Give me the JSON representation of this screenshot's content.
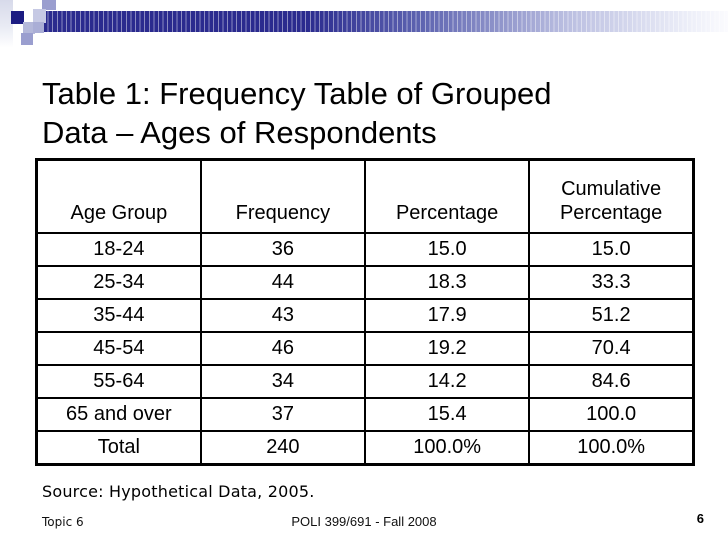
{
  "title": {
    "line1": "Table 1: Frequency Table of Grouped",
    "line2": "Data – Ages of Respondents"
  },
  "table": {
    "columns": [
      "Age Group",
      "Frequency",
      "Percentage",
      "Cumulative Percentage"
    ],
    "rows": [
      [
        "18-24",
        "36",
        "15.0",
        "15.0"
      ],
      [
        "25-34",
        "44",
        "18.3",
        "33.3"
      ],
      [
        "35-44",
        "43",
        "17.9",
        "51.2"
      ],
      [
        "45-54",
        "46",
        "19.2",
        "70.4"
      ],
      [
        "55-64",
        "34",
        "14.2",
        "84.6"
      ],
      [
        "65 and over",
        "37",
        "15.4",
        "100.0"
      ],
      [
        "Total",
        "240",
        "100.0%",
        "100.0%"
      ]
    ]
  },
  "source_note": "Source: Hypothetical Data, 2005.",
  "footer": {
    "topic": "Topic 6",
    "course": "POLI 399/691 - Fall 2008",
    "page_number": "6"
  },
  "colors": {
    "banner_navy": "#2a2a8e",
    "banner_square_dark": "#1c1c82",
    "banner_square_medium": "#9a9ecf",
    "banner_square_light": "#c6c9e4"
  }
}
